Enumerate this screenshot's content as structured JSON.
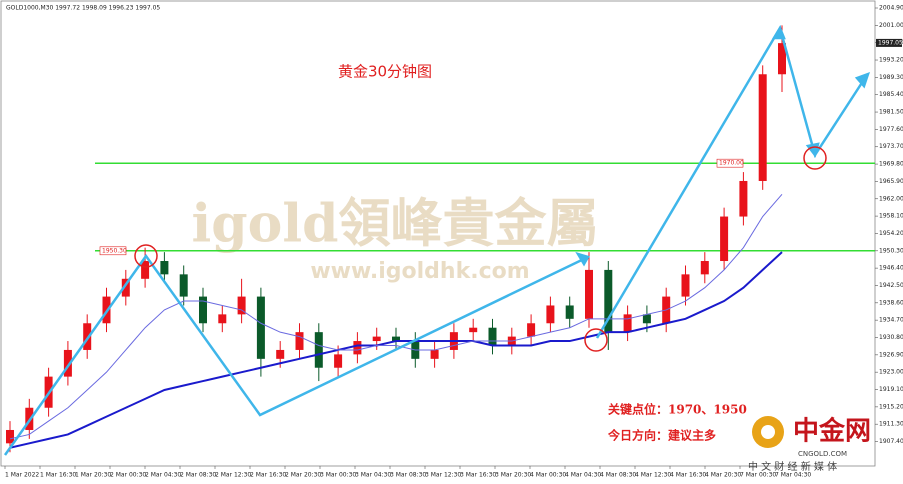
{
  "chart_data": {
    "type": "candlestick",
    "header": "GOLD1000,M30 1997.72 1998.09 1996.23 1997.05",
    "title": "黄金30分钟图",
    "annotations": [
      "关键点位：1970、1950",
      "今日方向：建议主多"
    ],
    "watermark": {
      "brand": "igold領峰貴金屬",
      "url": "www.igoldhk.com"
    },
    "logo": {
      "name": "中金网",
      "domain": "CNGOLD.COM",
      "slogan": "中 文 财 经 新 媒 体"
    },
    "x_labels": [
      "1 Mar 2022",
      "1 Mar 16:30",
      "1 Mar 20:30",
      "2 Mar 00:30",
      "2 Mar 04:30",
      "2 Mar 08:30",
      "2 Mar 12:30",
      "2 Mar 16:30",
      "2 Mar 20:30",
      "3 Mar 00:30",
      "3 Mar 04:30",
      "3 Mar 08:30",
      "3 Mar 12:30",
      "3 Mar 16:30",
      "3 Mar 20:30",
      "4 Mar 00:30",
      "4 Mar 04:30",
      "4 Mar 08:30",
      "4 Mar 12:30",
      "4 Mar 16:30",
      "4 Mar 20:30",
      "7 Mar 00:30",
      "7 Mar 04:30"
    ],
    "open": [
      1907,
      1910,
      1915,
      1922,
      1928,
      1934,
      1940,
      1944,
      1948,
      1945,
      1940,
      1934,
      1936,
      1940,
      1926,
      1928,
      1932,
      1924,
      1927,
      1930,
      1931,
      1930,
      1926,
      1928,
      1932,
      1933,
      1929,
      1931,
      1934,
      1938,
      1935,
      1946,
      1932,
      1936,
      1934,
      1940,
      1945,
      1948,
      1958,
      1966,
      1990
    ],
    "high": [
      1912,
      1917,
      1924,
      1930,
      1936,
      1942,
      1946,
      1951,
      1950,
      1947,
      1942,
      1938,
      1944,
      1942,
      1930,
      1934,
      1934,
      1929,
      1932,
      1933,
      1933,
      1932,
      1930,
      1934,
      1935,
      1935,
      1933,
      1936,
      1940,
      1940,
      1950,
      1948,
      1938,
      1938,
      1942,
      1947,
      1950,
      1960,
      1968,
      1992,
      2001
    ],
    "low": [
      1905,
      1908,
      1913,
      1920,
      1926,
      1932,
      1938,
      1942,
      1943,
      1938,
      1932,
      1932,
      1934,
      1922,
      1924,
      1926,
      1921,
      1922,
      1925,
      1928,
      1928,
      1924,
      1924,
      1926,
      1930,
      1927,
      1927,
      1929,
      1932,
      1933,
      1933,
      1928,
      1930,
      1932,
      1932,
      1938,
      1943,
      1946,
      1956,
      1964,
      1986
    ],
    "close": [
      1910,
      1915,
      1922,
      1928,
      1934,
      1940,
      1944,
      1948,
      1945,
      1940,
      1934,
      1936,
      1940,
      1926,
      1928,
      1932,
      1924,
      1927,
      1930,
      1931,
      1930,
      1926,
      1928,
      1932,
      1933,
      1929,
      1931,
      1934,
      1938,
      1935,
      1946,
      1932,
      1936,
      1934,
      1940,
      1945,
      1948,
      1958,
      1966,
      1990,
      1997
    ],
    "up_color": "#e8131b",
    "down_color": "#0b5a2a",
    "series": [
      {
        "color": "#1a1acc",
        "values": [
          1906,
          1907,
          1908,
          1909,
          1911,
          1913,
          1915,
          1917,
          1919,
          1920,
          1921,
          1922,
          1923,
          1924,
          1925,
          1926,
          1927,
          1928,
          1929,
          1929,
          1930,
          1930,
          1930,
          1930,
          1930,
          1929,
          1929,
          1929,
          1930,
          1930,
          1931,
          1932,
          1932,
          1933,
          1934,
          1935,
          1937,
          1939,
          1942,
          1946,
          1950
        ]
      },
      {
        "color": "#6a6ae0",
        "values": [
          1908,
          1909,
          1912,
          1915,
          1919,
          1923,
          1928,
          1933,
          1937,
          1939,
          1939,
          1938,
          1937,
          1934,
          1932,
          1931,
          1929,
          1928,
          1928,
          1929,
          1929,
          1928,
          1928,
          1929,
          1930,
          1930,
          1930,
          1931,
          1932,
          1933,
          1935,
          1935,
          1935,
          1936,
          1937,
          1939,
          1942,
          1946,
          1951,
          1958,
          1963
        ]
      }
    ],
    "levels": [
      {
        "value": 1970,
        "label": "1970.00",
        "color": "#33dd33"
      },
      {
        "value": 1950.3,
        "label": "1950.30",
        "color": "#33dd33"
      }
    ],
    "last_price": {
      "value": 1997.05,
      "label": "1997.05"
    },
    "ylim": [
      1901.9,
      2006.7
    ],
    "yticks": [
      {
        "value": 2004.9,
        "label": "2004.90"
      },
      {
        "value": 2001,
        "label": "2001.00"
      },
      {
        "value": 1997.1,
        "label": "1997.10"
      },
      {
        "value": 1993.2,
        "label": "1993.20"
      },
      {
        "value": 1989.3,
        "label": "1989.30"
      },
      {
        "value": 1985.4,
        "label": "1985.40"
      },
      {
        "value": 1981.5,
        "label": "1981.50"
      },
      {
        "value": 1977.6,
        "label": "1977.60"
      },
      {
        "value": 1973.7,
        "label": "1973.70"
      },
      {
        "value": 1969.8,
        "label": "1969.80"
      },
      {
        "value": 1965.9,
        "label": "1965.90"
      },
      {
        "value": 1962,
        "label": "1962.00"
      },
      {
        "value": 1958.1,
        "label": "1958.10"
      },
      {
        "value": 1954.2,
        "label": "1954.20"
      },
      {
        "value": 1950.3,
        "label": "1950.30"
      },
      {
        "value": 1946.4,
        "label": "1946.40"
      },
      {
        "value": 1942.5,
        "label": "1942.50"
      },
      {
        "value": 1938.6,
        "label": "1938.60"
      },
      {
        "value": 1934.7,
        "label": "1934.70"
      },
      {
        "value": 1930.8,
        "label": "1930.80"
      },
      {
        "value": 1926.9,
        "label": "1926.90"
      },
      {
        "value": 1923,
        "label": "1923.00"
      },
      {
        "value": 1919.1,
        "label": "1919.10"
      },
      {
        "value": 1915.2,
        "label": "1915.20"
      },
      {
        "value": 1911.3,
        "label": "1911.30"
      },
      {
        "value": 1907.4,
        "label": "1907.40"
      }
    ]
  }
}
